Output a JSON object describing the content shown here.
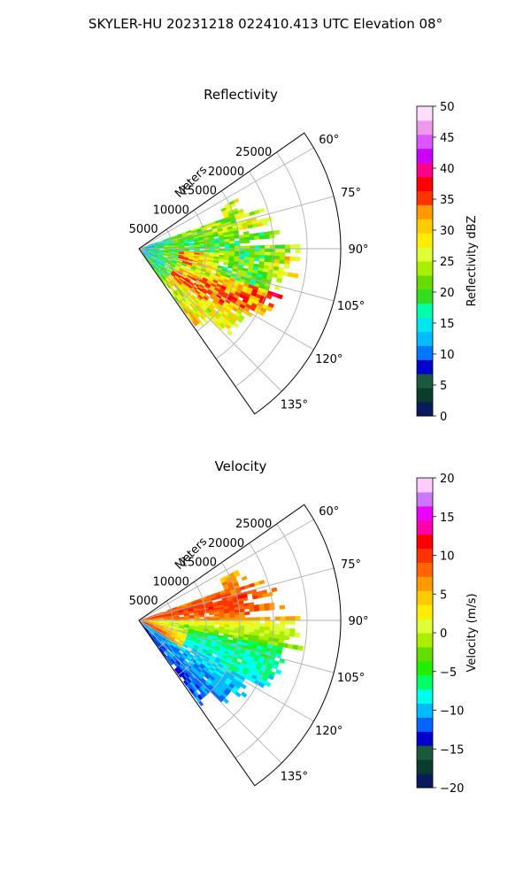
{
  "figure": {
    "suptitle": "SKYLER-HU  20231218  022410.413 UTC Elevation 08°"
  },
  "chart_data": [
    {
      "type": "heatmap",
      "subtype": "polar-sector-ppi",
      "title": "Reflectivity",
      "radial_axis_label": "Meters",
      "radial_ticks": [
        5000,
        10000,
        15000,
        20000,
        25000
      ],
      "radial_tick_labels": [
        "5000",
        "10000",
        "15000",
        "20000",
        "25000"
      ],
      "range_max": 30000,
      "azimuth_range": [
        55,
        145
      ],
      "azimuth_ticks": [
        60,
        75,
        90,
        105,
        120,
        135
      ],
      "azimuth_tick_labels": [
        "60°",
        "75°",
        "90°",
        "105°",
        "120°",
        "135°"
      ],
      "grid": true,
      "colorbar": {
        "label": "Reflectivity dBZ",
        "min": 0,
        "max": 50,
        "ticks": [
          0,
          5,
          10,
          15,
          20,
          25,
          30,
          35,
          40,
          45,
          50
        ],
        "tick_labels": [
          "0",
          "5",
          "10",
          "15",
          "20",
          "25",
          "30",
          "35",
          "40",
          "45",
          "50"
        ],
        "colors": [
          "#0a1a5c",
          "#0b3d2e",
          "#1a5a3a",
          "#0000cc",
          "#0077ff",
          "#00bbff",
          "#00e5ee",
          "#00ffaa",
          "#33dd22",
          "#66dd00",
          "#aaee00",
          "#ddff33",
          "#ffee00",
          "#ffcc00",
          "#ff9900",
          "#ff3300",
          "#ff0000",
          "#ff0088",
          "#cc00ff",
          "#dd55ff",
          "#ee99ee",
          "#ffddff"
        ]
      }
    },
    {
      "type": "heatmap",
      "subtype": "polar-sector-ppi",
      "title": "Velocity",
      "radial_axis_label": "Meters",
      "radial_ticks": [
        5000,
        10000,
        15000,
        20000,
        25000
      ],
      "radial_tick_labels": [
        "5000",
        "10000",
        "15000",
        "20000",
        "25000"
      ],
      "range_max": 30000,
      "azimuth_range": [
        55,
        145
      ],
      "azimuth_ticks": [
        60,
        75,
        90,
        105,
        120,
        135
      ],
      "azimuth_tick_labels": [
        "60°",
        "75°",
        "90°",
        "105°",
        "120°",
        "135°"
      ],
      "grid": true,
      "colorbar": {
        "label": "Velocity (m/s)",
        "min": -20,
        "max": 20,
        "ticks": [
          -20,
          -15,
          -10,
          -5,
          0,
          5,
          10,
          15,
          20
        ],
        "tick_labels": [
          "−20",
          "−15",
          "−10",
          "−5",
          "0",
          "5",
          "10",
          "15",
          "20"
        ],
        "colors": [
          "#0a1a5c",
          "#0b3d2e",
          "#1a5a3a",
          "#0000cc",
          "#0066ff",
          "#00bbff",
          "#00ffee",
          "#00ff66",
          "#22ee00",
          "#66dd00",
          "#aaee00",
          "#ddff33",
          "#ffee00",
          "#ffcc00",
          "#ff9900",
          "#ff6600",
          "#ff3300",
          "#ff0000",
          "#ff00aa",
          "#ee00ff",
          "#cc77ff",
          "#ffccff"
        ]
      }
    }
  ]
}
